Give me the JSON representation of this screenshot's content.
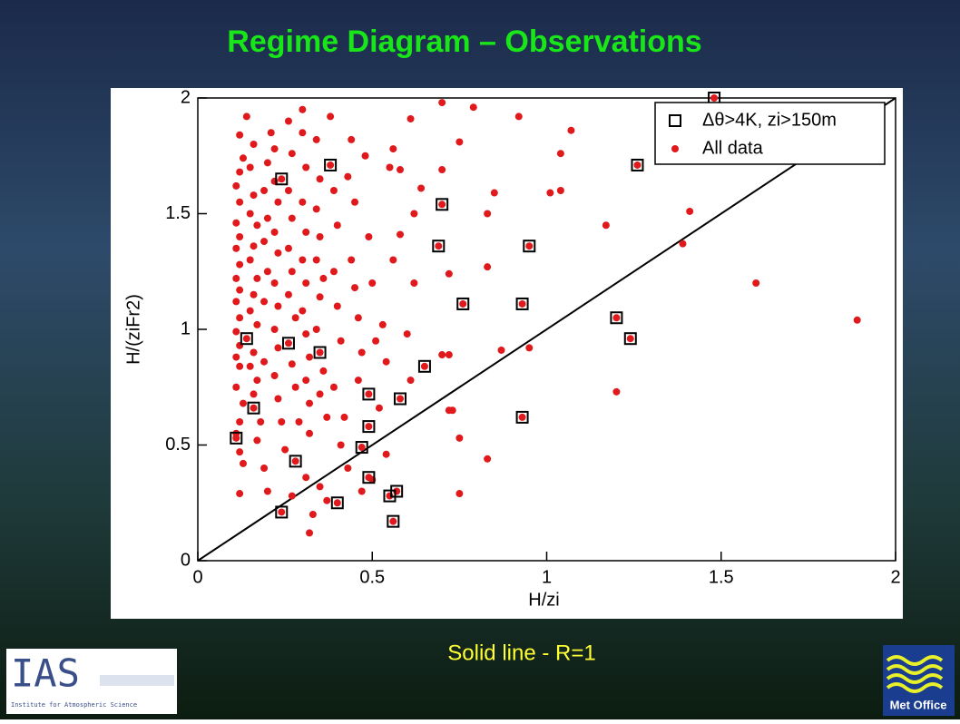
{
  "chart_data": {
    "type": "scatter",
    "title": "Regime Diagram – Observations",
    "x_label": "H/zi",
    "y_label": "H/(ziFr2)",
    "xlim": [
      0,
      2
    ],
    "ylim": [
      0,
      2
    ],
    "xticks": [
      0,
      0.5,
      1,
      1.5,
      2
    ],
    "yticks": [
      0,
      0.5,
      1,
      1.5,
      2
    ],
    "legend": "upper right",
    "reference_line": {
      "x": [
        0,
        2
      ],
      "y": [
        0,
        2
      ],
      "color": "#000000"
    },
    "footnote": "Solid line  -  R=1",
    "series": [
      {
        "name": "Δθ>4K, zi>150m",
        "marker": "square",
        "color": "#000000",
        "x": [
          1.48,
          1.26,
          0.38,
          0.24,
          0.7,
          0.69,
          0.95,
          0.76,
          0.93,
          1.2,
          1.24,
          0.14,
          0.26,
          0.35,
          0.65,
          0.49,
          0.58,
          0.16,
          0.93,
          0.11,
          0.49,
          0.47,
          0.28,
          0.49,
          0.24,
          0.4,
          0.57,
          0.55,
          0.56
        ],
        "y": [
          2.0,
          1.71,
          1.71,
          1.65,
          1.54,
          1.36,
          1.36,
          1.11,
          1.11,
          1.05,
          0.96,
          0.96,
          0.94,
          0.9,
          0.84,
          0.72,
          0.7,
          0.66,
          0.62,
          0.53,
          0.58,
          0.49,
          0.43,
          0.36,
          0.21,
          0.25,
          0.3,
          0.28,
          0.17
        ]
      },
      {
        "name": "All data",
        "marker": "dot",
        "color": "#e0191c",
        "x": [
          0.12,
          0.13,
          0.12,
          0.11,
          0.12,
          0.13,
          0.11,
          0.12,
          0.11,
          0.12,
          0.11,
          0.12,
          0.11,
          0.12,
          0.11,
          0.12,
          0.11,
          0.12,
          0.11,
          0.12,
          0.11,
          0.12,
          0.13,
          0.12,
          0.14,
          0.16,
          0.15,
          0.16,
          0.15,
          0.17,
          0.16,
          0.15,
          0.17,
          0.16,
          0.15,
          0.17,
          0.16,
          0.15,
          0.17,
          0.16,
          0.18,
          0.17,
          0.19,
          0.19,
          0.19,
          0.2,
          0.19,
          0.2,
          0.19,
          0.2,
          0.21,
          0.22,
          0.22,
          0.23,
          0.22,
          0.23,
          0.22,
          0.23,
          0.22,
          0.23,
          0.22,
          0.23,
          0.24,
          0.25,
          0.2,
          0.27,
          0.26,
          0.27,
          0.26,
          0.27,
          0.26,
          0.27,
          0.26,
          0.28,
          0.27,
          0.28,
          0.29,
          0.3,
          0.3,
          0.31,
          0.3,
          0.31,
          0.3,
          0.31,
          0.3,
          0.31,
          0.32,
          0.31,
          0.32,
          0.32,
          0.31,
          0.32,
          0.33,
          0.34,
          0.35,
          0.34,
          0.35,
          0.34,
          0.36,
          0.35,
          0.34,
          0.36,
          0.35,
          0.37,
          0.35,
          0.37,
          0.38,
          0.39,
          0.4,
          0.39,
          0.4,
          0.41,
          0.39,
          0.42,
          0.41,
          0.43,
          0.44,
          0.43,
          0.45,
          0.44,
          0.45,
          0.46,
          0.47,
          0.46,
          0.47,
          0.48,
          0.49,
          0.5,
          0.51,
          0.52,
          0.54,
          0.5,
          0.55,
          0.56,
          0.53,
          0.54,
          1.6,
          1.89,
          1.39,
          1.41,
          1.17,
          1.2,
          0.95,
          0.87,
          1.07,
          1.04,
          1.01,
          1.04,
          0.92,
          0.83,
          0.85,
          0.75,
          0.79,
          0.7,
          0.73,
          0.75,
          0.83,
          0.75,
          0.72,
          0.7,
          0.61,
          0.6,
          0.62,
          0.58,
          0.62,
          0.64,
          0.58,
          0.56,
          0.61,
          0.7,
          0.72,
          0.83,
          0.72,
          1.48,
          1.26,
          0.38,
          0.24,
          0.7,
          0.69,
          0.95,
          0.76,
          0.93,
          1.2,
          1.24,
          0.14,
          0.26,
          0.35,
          0.65,
          0.49,
          0.58,
          0.16,
          0.93,
          0.11,
          0.49,
          0.47,
          0.28,
          0.49,
          0.24,
          0.4,
          0.57,
          0.55,
          0.56
        ],
        "y": [
          0.29,
          0.42,
          0.47,
          0.55,
          0.6,
          0.68,
          0.75,
          0.84,
          0.88,
          0.93,
          0.99,
          1.05,
          1.12,
          1.17,
          1.22,
          1.28,
          1.35,
          1.4,
          1.46,
          1.55,
          1.62,
          1.68,
          1.74,
          1.84,
          1.92,
          1.8,
          1.7,
          1.58,
          1.5,
          1.45,
          1.36,
          1.3,
          1.22,
          1.15,
          1.08,
          1.02,
          0.9,
          0.84,
          0.78,
          0.72,
          0.6,
          0.52,
          0.4,
          0.86,
          1.12,
          1.25,
          1.38,
          1.48,
          1.6,
          1.72,
          1.85,
          1.78,
          1.64,
          1.55,
          1.42,
          1.33,
          1.2,
          1.1,
          1.0,
          0.92,
          0.8,
          0.7,
          0.6,
          0.48,
          0.3,
          0.28,
          1.9,
          1.76,
          1.6,
          1.48,
          1.35,
          1.25,
          1.15,
          1.05,
          0.85,
          0.75,
          0.6,
          1.95,
          1.85,
          1.7,
          1.55,
          1.42,
          1.3,
          1.2,
          1.08,
          0.98,
          0.88,
          0.78,
          0.68,
          0.55,
          0.36,
          0.12,
          0.2,
          1.82,
          1.65,
          1.52,
          1.4,
          1.3,
          1.22,
          1.14,
          1.0,
          0.82,
          0.72,
          0.62,
          0.32,
          0.26,
          1.92,
          1.6,
          1.45,
          1.25,
          1.1,
          0.95,
          0.75,
          0.62,
          0.5,
          0.4,
          1.82,
          1.66,
          1.55,
          1.3,
          1.18,
          1.05,
          0.9,
          0.78,
          0.3,
          1.75,
          1.4,
          1.2,
          0.95,
          0.66,
          0.46,
          0.35,
          1.7,
          1.3,
          1.02,
          0.86,
          1.2,
          1.04,
          1.37,
          1.51,
          1.45,
          0.73,
          0.92,
          0.91,
          1.86,
          1.76,
          1.59,
          1.6,
          1.92,
          1.5,
          1.59,
          1.81,
          1.96,
          1.69,
          0.65,
          0.53,
          0.44,
          0.29,
          0.89,
          0.89,
          0.78,
          0.98,
          1.2,
          1.41,
          1.5,
          1.61,
          1.69,
          1.78,
          1.91,
          1.98,
          1.24,
          1.27,
          0.65,
          2.0,
          1.71,
          1.71,
          1.65,
          1.54,
          1.36,
          1.36,
          1.11,
          1.11,
          1.05,
          0.96,
          0.96,
          0.94,
          0.9,
          0.84,
          0.72,
          0.7,
          0.66,
          0.62,
          0.53,
          0.58,
          0.49,
          0.43,
          0.36,
          0.21,
          0.25,
          0.3,
          0.28,
          0.17
        ]
      }
    ]
  },
  "logos": {
    "ias": "IAS",
    "ias_subtitle": "Institute for Atmospheric Science",
    "met_office": "Met Office"
  }
}
